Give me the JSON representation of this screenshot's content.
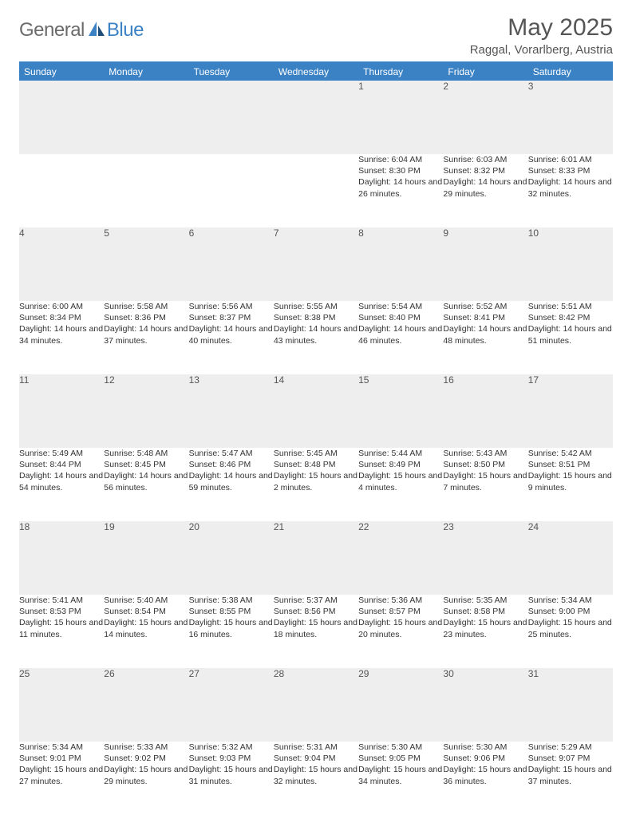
{
  "logo": {
    "part1": "General",
    "part2": "Blue"
  },
  "title": "May 2025",
  "location": "Raggal, Vorarlberg, Austria",
  "colors": {
    "accent": "#3b82c4",
    "header_text": "#ffffff",
    "daynum_bg": "#eeeeee",
    "body_text": "#333333",
    "muted_text": "#555555",
    "logo_gray": "#6b6b6b"
  },
  "daysOfWeek": [
    "Sunday",
    "Monday",
    "Tuesday",
    "Wednesday",
    "Thursday",
    "Friday",
    "Saturday"
  ],
  "weeks": [
    [
      null,
      null,
      null,
      null,
      {
        "n": "1",
        "sr": "Sunrise: 6:04 AM",
        "ss": "Sunset: 8:30 PM",
        "dl": "Daylight: 14 hours and 26 minutes."
      },
      {
        "n": "2",
        "sr": "Sunrise: 6:03 AM",
        "ss": "Sunset: 8:32 PM",
        "dl": "Daylight: 14 hours and 29 minutes."
      },
      {
        "n": "3",
        "sr": "Sunrise: 6:01 AM",
        "ss": "Sunset: 8:33 PM",
        "dl": "Daylight: 14 hours and 32 minutes."
      }
    ],
    [
      {
        "n": "4",
        "sr": "Sunrise: 6:00 AM",
        "ss": "Sunset: 8:34 PM",
        "dl": "Daylight: 14 hours and 34 minutes."
      },
      {
        "n": "5",
        "sr": "Sunrise: 5:58 AM",
        "ss": "Sunset: 8:36 PM",
        "dl": "Daylight: 14 hours and 37 minutes."
      },
      {
        "n": "6",
        "sr": "Sunrise: 5:56 AM",
        "ss": "Sunset: 8:37 PM",
        "dl": "Daylight: 14 hours and 40 minutes."
      },
      {
        "n": "7",
        "sr": "Sunrise: 5:55 AM",
        "ss": "Sunset: 8:38 PM",
        "dl": "Daylight: 14 hours and 43 minutes."
      },
      {
        "n": "8",
        "sr": "Sunrise: 5:54 AM",
        "ss": "Sunset: 8:40 PM",
        "dl": "Daylight: 14 hours and 46 minutes."
      },
      {
        "n": "9",
        "sr": "Sunrise: 5:52 AM",
        "ss": "Sunset: 8:41 PM",
        "dl": "Daylight: 14 hours and 48 minutes."
      },
      {
        "n": "10",
        "sr": "Sunrise: 5:51 AM",
        "ss": "Sunset: 8:42 PM",
        "dl": "Daylight: 14 hours and 51 minutes."
      }
    ],
    [
      {
        "n": "11",
        "sr": "Sunrise: 5:49 AM",
        "ss": "Sunset: 8:44 PM",
        "dl": "Daylight: 14 hours and 54 minutes."
      },
      {
        "n": "12",
        "sr": "Sunrise: 5:48 AM",
        "ss": "Sunset: 8:45 PM",
        "dl": "Daylight: 14 hours and 56 minutes."
      },
      {
        "n": "13",
        "sr": "Sunrise: 5:47 AM",
        "ss": "Sunset: 8:46 PM",
        "dl": "Daylight: 14 hours and 59 minutes."
      },
      {
        "n": "14",
        "sr": "Sunrise: 5:45 AM",
        "ss": "Sunset: 8:48 PM",
        "dl": "Daylight: 15 hours and 2 minutes."
      },
      {
        "n": "15",
        "sr": "Sunrise: 5:44 AM",
        "ss": "Sunset: 8:49 PM",
        "dl": "Daylight: 15 hours and 4 minutes."
      },
      {
        "n": "16",
        "sr": "Sunrise: 5:43 AM",
        "ss": "Sunset: 8:50 PM",
        "dl": "Daylight: 15 hours and 7 minutes."
      },
      {
        "n": "17",
        "sr": "Sunrise: 5:42 AM",
        "ss": "Sunset: 8:51 PM",
        "dl": "Daylight: 15 hours and 9 minutes."
      }
    ],
    [
      {
        "n": "18",
        "sr": "Sunrise: 5:41 AM",
        "ss": "Sunset: 8:53 PM",
        "dl": "Daylight: 15 hours and 11 minutes."
      },
      {
        "n": "19",
        "sr": "Sunrise: 5:40 AM",
        "ss": "Sunset: 8:54 PM",
        "dl": "Daylight: 15 hours and 14 minutes."
      },
      {
        "n": "20",
        "sr": "Sunrise: 5:38 AM",
        "ss": "Sunset: 8:55 PM",
        "dl": "Daylight: 15 hours and 16 minutes."
      },
      {
        "n": "21",
        "sr": "Sunrise: 5:37 AM",
        "ss": "Sunset: 8:56 PM",
        "dl": "Daylight: 15 hours and 18 minutes."
      },
      {
        "n": "22",
        "sr": "Sunrise: 5:36 AM",
        "ss": "Sunset: 8:57 PM",
        "dl": "Daylight: 15 hours and 20 minutes."
      },
      {
        "n": "23",
        "sr": "Sunrise: 5:35 AM",
        "ss": "Sunset: 8:58 PM",
        "dl": "Daylight: 15 hours and 23 minutes."
      },
      {
        "n": "24",
        "sr": "Sunrise: 5:34 AM",
        "ss": "Sunset: 9:00 PM",
        "dl": "Daylight: 15 hours and 25 minutes."
      }
    ],
    [
      {
        "n": "25",
        "sr": "Sunrise: 5:34 AM",
        "ss": "Sunset: 9:01 PM",
        "dl": "Daylight: 15 hours and 27 minutes."
      },
      {
        "n": "26",
        "sr": "Sunrise: 5:33 AM",
        "ss": "Sunset: 9:02 PM",
        "dl": "Daylight: 15 hours and 29 minutes."
      },
      {
        "n": "27",
        "sr": "Sunrise: 5:32 AM",
        "ss": "Sunset: 9:03 PM",
        "dl": "Daylight: 15 hours and 31 minutes."
      },
      {
        "n": "28",
        "sr": "Sunrise: 5:31 AM",
        "ss": "Sunset: 9:04 PM",
        "dl": "Daylight: 15 hours and 32 minutes."
      },
      {
        "n": "29",
        "sr": "Sunrise: 5:30 AM",
        "ss": "Sunset: 9:05 PM",
        "dl": "Daylight: 15 hours and 34 minutes."
      },
      {
        "n": "30",
        "sr": "Sunrise: 5:30 AM",
        "ss": "Sunset: 9:06 PM",
        "dl": "Daylight: 15 hours and 36 minutes."
      },
      {
        "n": "31",
        "sr": "Sunrise: 5:29 AM",
        "ss": "Sunset: 9:07 PM",
        "dl": "Daylight: 15 hours and 37 minutes."
      }
    ]
  ]
}
